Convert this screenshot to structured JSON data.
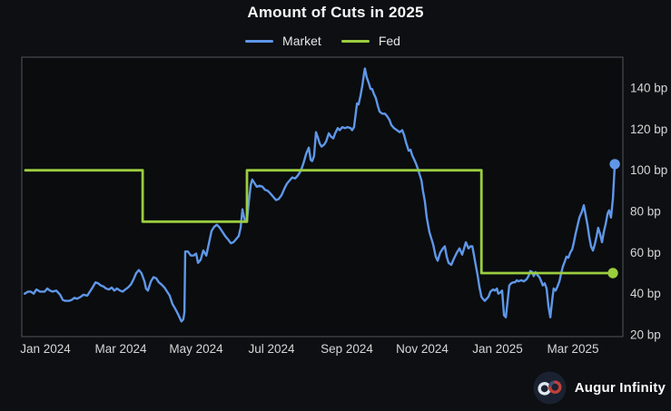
{
  "title": "Amount of Cuts in 2025",
  "legend": [
    {
      "label": "Market",
      "color": "#5f97e8"
    },
    {
      "label": "Fed",
      "color": "#9bcd3f"
    }
  ],
  "footer": {
    "brand": "Augur Infinity"
  },
  "colors": {
    "background": "#0d0f12",
    "plot_background": "#0a0c0e",
    "plot_border": "#51565c",
    "tick_text": "#d6d6d6",
    "market_line": "#5f97e8",
    "fed_line": "#9bcd3f",
    "logo_circle": "#1a2130",
    "logo_loop_left": "#dfe6ee",
    "logo_loop_right": "#bf4038"
  },
  "chart_data": {
    "type": "line",
    "title": "Amount of Cuts in 2025",
    "x_unit": "months after Jan 2024 tick",
    "y_unit": "bp",
    "x_tick_positions": [
      0,
      2,
      4,
      6,
      8,
      10,
      12,
      14
    ],
    "x_tick_labels": [
      "Jan 2024",
      "Mar 2024",
      "May 2024",
      "Jul 2024",
      "Sep 2024",
      "Nov 2024",
      "Jan 2025",
      "Mar 2025"
    ],
    "y_ticks": [
      20,
      40,
      60,
      80,
      100,
      120,
      140
    ],
    "y_tick_labels": [
      "20 bp",
      "40 bp",
      "60 bp",
      "80 bp",
      "100 bp",
      "120 bp",
      "140 bp"
    ],
    "ylim": [
      19,
      155
    ],
    "grid": false,
    "legend_position": "top-center",
    "series": [
      {
        "name": "Market",
        "color": "#5f97e8",
        "width": 2.4,
        "end_marker": true,
        "step": false,
        "points": [
          [
            -0.55,
            40
          ],
          [
            -0.46,
            41
          ],
          [
            -0.39,
            41
          ],
          [
            -0.31,
            40
          ],
          [
            -0.24,
            42
          ],
          [
            -0.14,
            41
          ],
          [
            -0.02,
            41
          ],
          [
            0.05,
            42.5
          ],
          [
            0.12,
            41.5
          ],
          [
            0.19,
            41
          ],
          [
            0.29,
            41.5
          ],
          [
            0.39,
            39.5
          ],
          [
            0.46,
            37
          ],
          [
            0.53,
            36.5
          ],
          [
            0.63,
            36.5
          ],
          [
            0.7,
            37
          ],
          [
            0.77,
            38
          ],
          [
            0.84,
            37.5
          ],
          [
            0.94,
            38.5
          ],
          [
            1.01,
            39.5
          ],
          [
            1.11,
            39
          ],
          [
            1.18,
            41
          ],
          [
            1.25,
            43
          ],
          [
            1.33,
            45.5
          ],
          [
            1.4,
            45
          ],
          [
            1.47,
            44
          ],
          [
            1.54,
            43.5
          ],
          [
            1.61,
            42.5
          ],
          [
            1.69,
            42
          ],
          [
            1.76,
            43
          ],
          [
            1.83,
            41.5
          ],
          [
            1.9,
            42.5
          ],
          [
            1.98,
            41.5
          ],
          [
            2.05,
            41
          ],
          [
            2.12,
            42
          ],
          [
            2.19,
            43
          ],
          [
            2.27,
            44.5
          ],
          [
            2.34,
            47
          ],
          [
            2.41,
            50
          ],
          [
            2.48,
            51.5
          ],
          [
            2.55,
            50
          ],
          [
            2.63,
            46
          ],
          [
            2.67,
            42.5
          ],
          [
            2.72,
            41.5
          ],
          [
            2.8,
            46
          ],
          [
            2.87,
            48
          ],
          [
            2.94,
            47.5
          ],
          [
            3.01,
            45.5
          ],
          [
            3.08,
            44.5
          ],
          [
            3.16,
            43
          ],
          [
            3.23,
            41
          ],
          [
            3.3,
            39
          ],
          [
            3.37,
            35
          ],
          [
            3.45,
            32.5
          ],
          [
            3.52,
            30
          ],
          [
            3.57,
            28
          ],
          [
            3.61,
            26.5
          ],
          [
            3.66,
            27.5
          ],
          [
            3.69,
            31
          ],
          [
            3.71,
            60.5
          ],
          [
            3.78,
            60.5
          ],
          [
            3.86,
            58.5
          ],
          [
            3.93,
            58.5
          ],
          [
            4.0,
            59.5
          ],
          [
            4.05,
            55
          ],
          [
            4.12,
            56.5
          ],
          [
            4.19,
            61
          ],
          [
            4.27,
            58.5
          ],
          [
            4.34,
            64.5
          ],
          [
            4.41,
            70.5
          ],
          [
            4.48,
            72.5
          ],
          [
            4.55,
            73.5
          ],
          [
            4.63,
            72
          ],
          [
            4.7,
            70
          ],
          [
            4.77,
            68
          ],
          [
            4.84,
            66.5
          ],
          [
            4.92,
            64.5
          ],
          [
            4.99,
            65
          ],
          [
            5.06,
            66.5
          ],
          [
            5.13,
            68
          ],
          [
            5.18,
            72
          ],
          [
            5.23,
            81
          ],
          [
            5.25,
            79
          ],
          [
            5.3,
            75
          ],
          [
            5.35,
            75.5
          ],
          [
            5.4,
            85
          ],
          [
            5.45,
            93
          ],
          [
            5.49,
            95.5
          ],
          [
            5.54,
            94
          ],
          [
            5.61,
            92
          ],
          [
            5.69,
            92.5
          ],
          [
            5.76,
            92
          ],
          [
            5.83,
            90.5
          ],
          [
            5.9,
            90
          ],
          [
            5.98,
            88.5
          ],
          [
            6.05,
            87
          ],
          [
            6.12,
            85.5
          ],
          [
            6.19,
            86
          ],
          [
            6.27,
            88
          ],
          [
            6.34,
            91
          ],
          [
            6.41,
            93.5
          ],
          [
            6.48,
            95
          ],
          [
            6.55,
            96.5
          ],
          [
            6.63,
            96
          ],
          [
            6.7,
            97.5
          ],
          [
            6.77,
            99.5
          ],
          [
            6.84,
            103
          ],
          [
            6.92,
            108
          ],
          [
            6.99,
            111
          ],
          [
            7.04,
            105
          ],
          [
            7.08,
            104.5
          ],
          [
            7.13,
            107
          ],
          [
            7.18,
            118.5
          ],
          [
            7.23,
            116
          ],
          [
            7.28,
            113
          ],
          [
            7.33,
            111.5
          ],
          [
            7.4,
            112.5
          ],
          [
            7.45,
            114
          ],
          [
            7.52,
            118
          ],
          [
            7.57,
            116.5
          ],
          [
            7.64,
            115.5
          ],
          [
            7.69,
            118
          ],
          [
            7.76,
            120.5
          ],
          [
            7.81,
            119.5
          ],
          [
            7.88,
            121
          ],
          [
            7.95,
            120.5
          ],
          [
            8.02,
            121
          ],
          [
            8.1,
            120.5
          ],
          [
            8.14,
            119.5
          ],
          [
            8.19,
            121
          ],
          [
            8.27,
            132.5
          ],
          [
            8.31,
            132
          ],
          [
            8.36,
            136
          ],
          [
            8.41,
            141
          ],
          [
            8.46,
            147.5
          ],
          [
            8.48,
            149.5
          ],
          [
            8.53,
            145
          ],
          [
            8.58,
            142.5
          ],
          [
            8.63,
            139.5
          ],
          [
            8.67,
            139.5
          ],
          [
            8.72,
            137
          ],
          [
            8.77,
            135
          ],
          [
            8.82,
            131.5
          ],
          [
            8.87,
            128.5
          ],
          [
            8.94,
            127.5
          ],
          [
            9.01,
            127.5
          ],
          [
            9.08,
            126
          ],
          [
            9.13,
            124.5
          ],
          [
            9.18,
            122
          ],
          [
            9.25,
            120.5
          ],
          [
            9.33,
            119.5
          ],
          [
            9.4,
            118.5
          ],
          [
            9.47,
            119.5
          ],
          [
            9.52,
            117
          ],
          [
            9.57,
            113.5
          ],
          [
            9.64,
            109.5
          ],
          [
            9.69,
            110
          ],
          [
            9.73,
            107.5
          ],
          [
            9.78,
            105.5
          ],
          [
            9.83,
            103.5
          ],
          [
            9.88,
            101
          ],
          [
            9.93,
            98
          ],
          [
            9.98,
            95
          ],
          [
            10.02,
            90
          ],
          [
            10.07,
            85
          ],
          [
            10.12,
            77
          ],
          [
            10.19,
            70
          ],
          [
            10.29,
            64
          ],
          [
            10.36,
            58
          ],
          [
            10.41,
            56
          ],
          [
            10.48,
            60
          ],
          [
            10.55,
            62
          ],
          [
            10.6,
            63
          ],
          [
            10.65,
            58
          ],
          [
            10.7,
            55
          ],
          [
            10.77,
            54
          ],
          [
            10.84,
            57
          ],
          [
            10.92,
            60
          ],
          [
            10.99,
            62
          ],
          [
            11.06,
            59
          ],
          [
            11.11,
            62
          ],
          [
            11.16,
            65
          ],
          [
            11.23,
            62
          ],
          [
            11.28,
            63
          ],
          [
            11.33,
            63
          ],
          [
            11.37,
            59
          ],
          [
            11.42,
            54
          ],
          [
            11.47,
            49
          ],
          [
            11.52,
            43
          ],
          [
            11.57,
            38.5
          ],
          [
            11.61,
            37.5
          ],
          [
            11.66,
            36.5
          ],
          [
            11.71,
            37.5
          ],
          [
            11.76,
            38.5
          ],
          [
            11.81,
            41
          ],
          [
            11.88,
            42
          ],
          [
            11.93,
            41.5
          ],
          [
            11.98,
            42.5
          ],
          [
            12.02,
            40
          ],
          [
            12.07,
            40.5
          ],
          [
            12.12,
            41.5
          ],
          [
            12.17,
            29.5
          ],
          [
            12.22,
            28.5
          ],
          [
            12.27,
            37
          ],
          [
            12.31,
            44
          ],
          [
            12.36,
            45
          ],
          [
            12.41,
            45.5
          ],
          [
            12.46,
            45.5
          ],
          [
            12.51,
            46.5
          ],
          [
            12.55,
            46
          ],
          [
            12.63,
            46.5
          ],
          [
            12.7,
            46
          ],
          [
            12.77,
            47
          ],
          [
            12.82,
            48.5
          ],
          [
            12.87,
            51
          ],
          [
            12.92,
            50.5
          ],
          [
            12.96,
            48.5
          ],
          [
            13.01,
            50.5
          ],
          [
            13.06,
            49
          ],
          [
            13.11,
            48
          ],
          [
            13.16,
            46
          ],
          [
            13.2,
            44
          ],
          [
            13.25,
            45
          ],
          [
            13.3,
            42.5
          ],
          [
            13.35,
            34
          ],
          [
            13.4,
            28.5
          ],
          [
            13.45,
            37
          ],
          [
            13.49,
            42.5
          ],
          [
            13.54,
            41.5
          ],
          [
            13.59,
            43.5
          ],
          [
            13.64,
            46
          ],
          [
            13.69,
            50
          ],
          [
            13.73,
            53
          ],
          [
            13.78,
            55.5
          ],
          [
            13.83,
            58
          ],
          [
            13.88,
            57.5
          ],
          [
            13.93,
            60
          ],
          [
            13.98,
            61.5
          ],
          [
            14.02,
            64.5
          ],
          [
            14.07,
            69
          ],
          [
            14.12,
            73
          ],
          [
            14.17,
            77
          ],
          [
            14.24,
            80
          ],
          [
            14.29,
            83
          ],
          [
            14.34,
            78
          ],
          [
            14.39,
            73
          ],
          [
            14.43,
            68
          ],
          [
            14.48,
            63
          ],
          [
            14.53,
            61
          ],
          [
            14.58,
            64
          ],
          [
            14.63,
            68
          ],
          [
            14.67,
            72
          ],
          [
            14.72,
            69
          ],
          [
            14.77,
            65
          ],
          [
            14.82,
            70
          ],
          [
            14.87,
            74
          ],
          [
            14.92,
            79
          ],
          [
            14.96,
            80.5
          ],
          [
            15.01,
            77
          ],
          [
            15.06,
            86
          ],
          [
            15.11,
            103
          ]
        ]
      },
      {
        "name": "Fed",
        "color": "#9bcd3f",
        "width": 2.8,
        "end_marker": true,
        "step": true,
        "points": [
          [
            -0.53,
            100
          ],
          [
            2.58,
            100
          ],
          [
            2.58,
            75
          ],
          [
            5.35,
            75
          ],
          [
            5.35,
            100
          ],
          [
            11.57,
            100
          ],
          [
            11.57,
            50
          ],
          [
            15.06,
            50
          ]
        ]
      }
    ]
  }
}
